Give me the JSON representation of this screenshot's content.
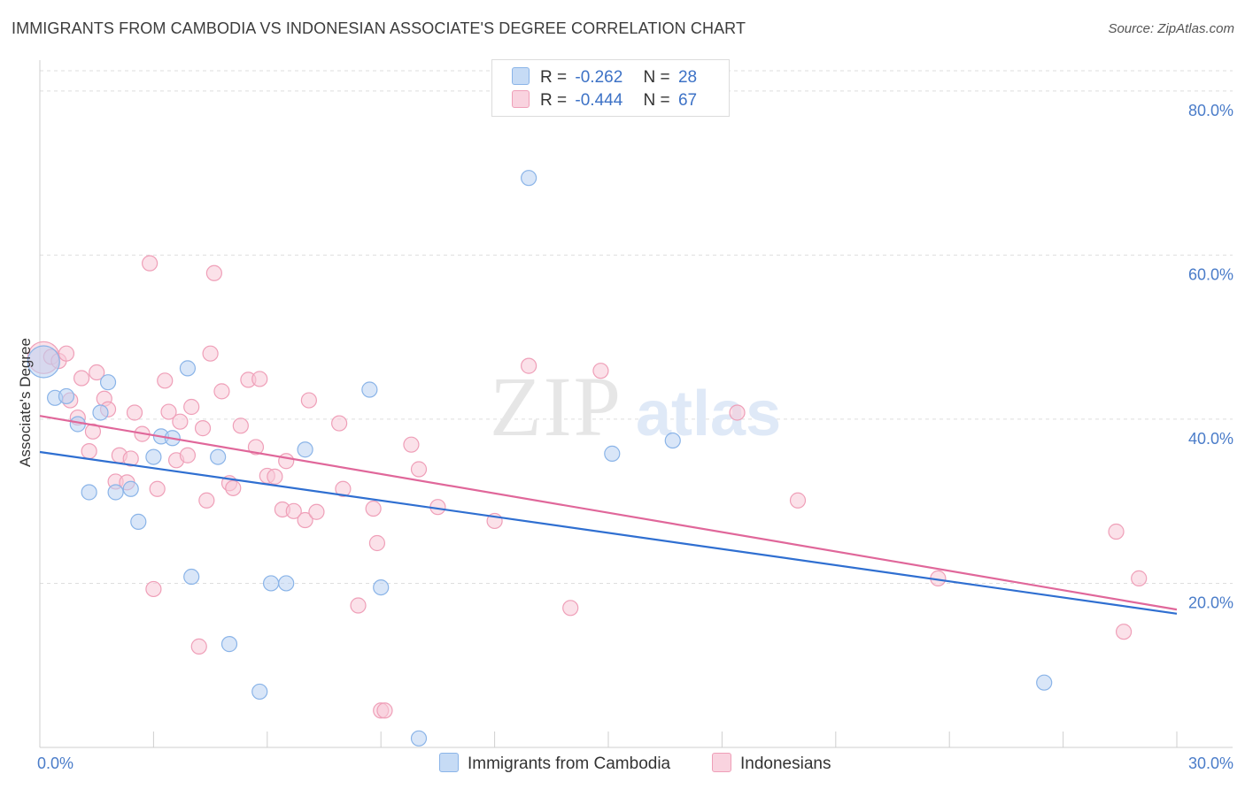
{
  "title": "IMMIGRANTS FROM CAMBODIA VS INDONESIAN ASSOCIATE'S DEGREE CORRELATION CHART",
  "source": "Source: ZipAtlas.com",
  "watermark": {
    "zip": "ZIP",
    "atlas": "atlas"
  },
  "colors": {
    "blue": "#8ab4e8",
    "blue_fill": "#b9d2f2",
    "blue_line": "#2f6fd1",
    "pink": "#ef9fb8",
    "pink_fill": "#f7c9d7",
    "pink_line": "#e0679a",
    "tick_text": "#4a7cc9"
  },
  "legend": {
    "rows": [
      {
        "r_label": "R =",
        "r_value": "-0.262",
        "n_label": "N =",
        "n_value": "28"
      },
      {
        "r_label": "R =",
        "r_value": "-0.444",
        "n_label": "N =",
        "n_value": "67"
      }
    ]
  },
  "bottom_legend": {
    "series1": "Immigrants from Cambodia",
    "series2": "Indonesians"
  },
  "chart_data": {
    "type": "scatter",
    "title": "IMMIGRANTS FROM CAMBODIA VS INDONESIAN ASSOCIATE'S DEGREE CORRELATION CHART",
    "xlabel": "",
    "ylabel": "Associate's Degree",
    "xlim": [
      0,
      30
    ],
    "ylim": [
      0,
      83
    ],
    "x_tick_labels": [
      "0.0%",
      "30.0%"
    ],
    "y_ticks": [
      20,
      40,
      60,
      80
    ],
    "y_tick_labels": [
      "20.0%",
      "40.0%",
      "60.0%",
      "80.0%"
    ],
    "series": [
      {
        "name": "Immigrants from Cambodia",
        "r": -0.262,
        "n": 28,
        "trend": {
          "x": [
            0,
            30
          ],
          "y": [
            36.0,
            16.3
          ]
        },
        "points": [
          {
            "x": 0.1,
            "y": 47.0,
            "big": true
          },
          {
            "x": 0.4,
            "y": 42.6
          },
          {
            "x": 0.7,
            "y": 42.8
          },
          {
            "x": 1.0,
            "y": 39.4
          },
          {
            "x": 1.3,
            "y": 31.1
          },
          {
            "x": 1.6,
            "y": 40.8
          },
          {
            "x": 1.8,
            "y": 44.5
          },
          {
            "x": 2.0,
            "y": 31.1
          },
          {
            "x": 2.4,
            "y": 31.5
          },
          {
            "x": 2.6,
            "y": 27.5
          },
          {
            "x": 3.0,
            "y": 35.4
          },
          {
            "x": 3.2,
            "y": 37.9
          },
          {
            "x": 3.5,
            "y": 37.7
          },
          {
            "x": 3.9,
            "y": 46.2
          },
          {
            "x": 4.0,
            "y": 20.8
          },
          {
            "x": 4.7,
            "y": 35.4
          },
          {
            "x": 5.0,
            "y": 12.6
          },
          {
            "x": 5.8,
            "y": 6.8
          },
          {
            "x": 6.1,
            "y": 20.0
          },
          {
            "x": 6.5,
            "y": 20.0
          },
          {
            "x": 7.0,
            "y": 36.3
          },
          {
            "x": 8.7,
            "y": 43.6
          },
          {
            "x": 9.0,
            "y": 19.5
          },
          {
            "x": 10.0,
            "y": 1.1
          },
          {
            "x": 12.9,
            "y": 69.4
          },
          {
            "x": 15.1,
            "y": 35.8
          },
          {
            "x": 16.7,
            "y": 37.4
          },
          {
            "x": 26.5,
            "y": 7.9
          }
        ]
      },
      {
        "name": "Indonesians",
        "r": -0.444,
        "n": 67,
        "trend": {
          "x": [
            0,
            30
          ],
          "y": [
            40.4,
            16.8
          ]
        },
        "points": [
          {
            "x": 0.1,
            "y": 47.5,
            "big": true
          },
          {
            "x": 0.3,
            "y": 47.6
          },
          {
            "x": 0.5,
            "y": 47.1
          },
          {
            "x": 0.7,
            "y": 48.0
          },
          {
            "x": 0.8,
            "y": 42.3
          },
          {
            "x": 1.0,
            "y": 40.2
          },
          {
            "x": 1.1,
            "y": 45.0
          },
          {
            "x": 1.3,
            "y": 36.1
          },
          {
            "x": 1.4,
            "y": 38.5
          },
          {
            "x": 1.5,
            "y": 45.7
          },
          {
            "x": 1.7,
            "y": 42.5
          },
          {
            "x": 1.8,
            "y": 41.2
          },
          {
            "x": 2.0,
            "y": 32.4
          },
          {
            "x": 2.1,
            "y": 35.6
          },
          {
            "x": 2.3,
            "y": 32.3
          },
          {
            "x": 2.4,
            "y": 35.2
          },
          {
            "x": 2.5,
            "y": 40.8
          },
          {
            "x": 2.7,
            "y": 38.2
          },
          {
            "x": 2.9,
            "y": 59.0
          },
          {
            "x": 3.0,
            "y": 19.3
          },
          {
            "x": 3.1,
            "y": 31.5
          },
          {
            "x": 3.3,
            "y": 44.7
          },
          {
            "x": 3.4,
            "y": 40.9
          },
          {
            "x": 3.6,
            "y": 35.0
          },
          {
            "x": 3.7,
            "y": 39.7
          },
          {
            "x": 3.9,
            "y": 35.6
          },
          {
            "x": 4.0,
            "y": 41.5
          },
          {
            "x": 4.2,
            "y": 12.3
          },
          {
            "x": 4.3,
            "y": 38.9
          },
          {
            "x": 4.4,
            "y": 30.1
          },
          {
            "x": 4.5,
            "y": 48.0
          },
          {
            "x": 4.6,
            "y": 57.8
          },
          {
            "x": 4.8,
            "y": 43.4
          },
          {
            "x": 5.0,
            "y": 32.2
          },
          {
            "x": 5.1,
            "y": 31.6
          },
          {
            "x": 5.3,
            "y": 39.2
          },
          {
            "x": 5.5,
            "y": 44.8
          },
          {
            "x": 5.7,
            "y": 36.6
          },
          {
            "x": 5.8,
            "y": 44.9
          },
          {
            "x": 6.0,
            "y": 33.1
          },
          {
            "x": 6.2,
            "y": 33.0
          },
          {
            "x": 6.4,
            "y": 29.0
          },
          {
            "x": 6.5,
            "y": 34.9
          },
          {
            "x": 6.7,
            "y": 28.8
          },
          {
            "x": 7.0,
            "y": 27.7
          },
          {
            "x": 7.1,
            "y": 42.3
          },
          {
            "x": 7.3,
            "y": 28.7
          },
          {
            "x": 7.9,
            "y": 39.5
          },
          {
            "x": 8.0,
            "y": 31.5
          },
          {
            "x": 8.4,
            "y": 17.3
          },
          {
            "x": 8.8,
            "y": 29.1
          },
          {
            "x": 8.9,
            "y": 24.9
          },
          {
            "x": 9.0,
            "y": 4.5
          },
          {
            "x": 9.1,
            "y": 4.5
          },
          {
            "x": 9.8,
            "y": 36.9
          },
          {
            "x": 10.0,
            "y": 33.9
          },
          {
            "x": 10.5,
            "y": 29.3
          },
          {
            "x": 12.0,
            "y": 27.6
          },
          {
            "x": 12.9,
            "y": 46.5
          },
          {
            "x": 14.0,
            "y": 17.0
          },
          {
            "x": 14.8,
            "y": 45.9
          },
          {
            "x": 18.4,
            "y": 40.8
          },
          {
            "x": 20.0,
            "y": 30.1
          },
          {
            "x": 23.7,
            "y": 20.6
          },
          {
            "x": 28.4,
            "y": 26.3
          },
          {
            "x": 28.6,
            "y": 14.1
          },
          {
            "x": 29.0,
            "y": 20.6
          }
        ]
      }
    ]
  }
}
